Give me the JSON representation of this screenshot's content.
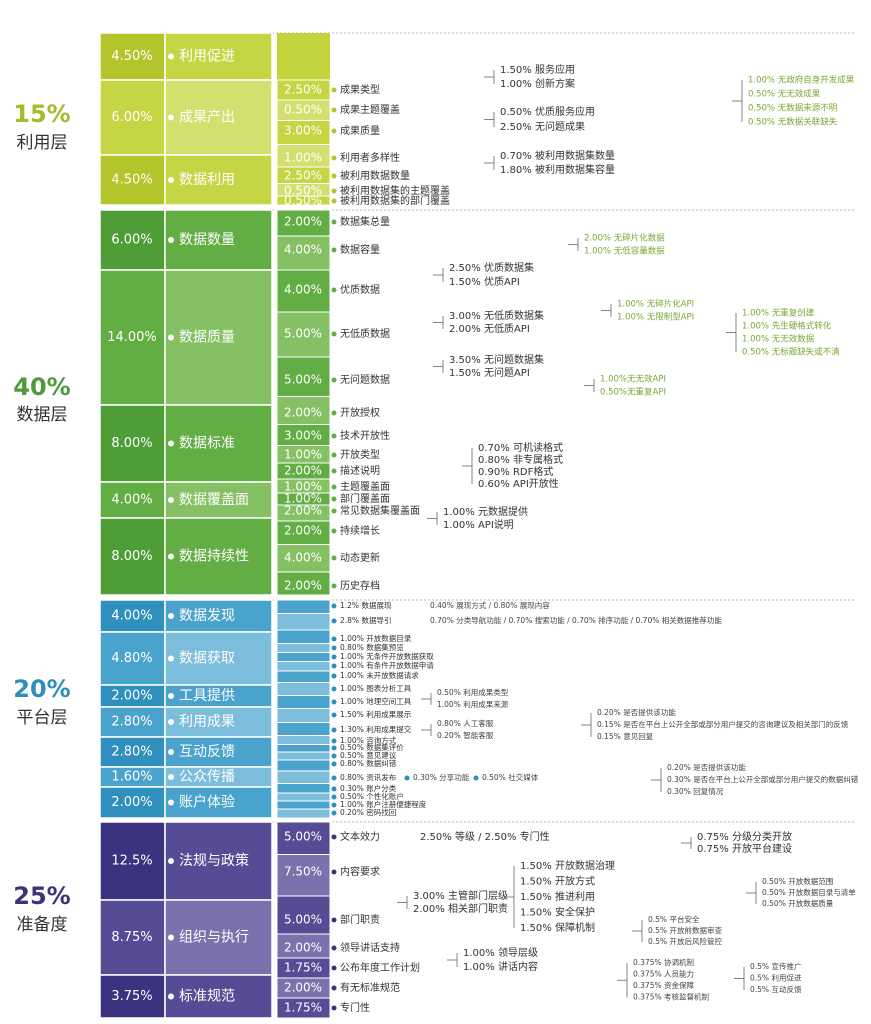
{
  "layers": [
    {
      "percent": "15%",
      "name": "利用层",
      "items": [
        {
          "percent": "4.50%",
          "name": "利用促进"
        },
        {
          "percent": "6.00%",
          "name": "成果产出"
        },
        {
          "percent": "4.50%",
          "name": "数据利用"
        }
      ],
      "rows": [
        {
          "percent": "2.50%",
          "name": "成果类型"
        },
        {
          "percent": "0.50%",
          "name": "成果主题覆盖"
        },
        {
          "percent": "3.00%",
          "name": "成果质量"
        },
        {
          "percent": "1.00%",
          "name": "利用者多样性"
        },
        {
          "percent": "2.50%",
          "name": "被利用数据数量"
        },
        {
          "percent": "0.50%",
          "name": "被利用数据集的主题覆盖"
        },
        {
          "percent": "0.50%",
          "name": "被利用数据集的部门覆盖"
        }
      ],
      "notes": [
        [
          "1.50% 服务应用",
          "1.00% 创新方案"
        ],
        [
          "0.50% 优质服务应用",
          "2.50% 无问题成果"
        ],
        [
          "1.00% 无政府自身开发成果",
          "0.50% 无无效成果",
          "0.50% 无数据来源不明",
          "0.50% 无数据关联缺失"
        ],
        [
          "0.70% 被利用数据集数量",
          "1.80% 被利用数据集容量"
        ]
      ]
    },
    {
      "percent": "40%",
      "name": "数据层",
      "items": [
        {
          "percent": "6.00%",
          "name": "数据数量"
        },
        {
          "percent": "14.00%",
          "name": "数据质量"
        },
        {
          "percent": "8.00%",
          "name": "数据标准"
        },
        {
          "percent": "4.00%",
          "name": "数据覆盖面"
        },
        {
          "percent": "8.00%",
          "name": "数据持续性"
        }
      ],
      "rows": [
        {
          "percent": "2.00%",
          "name": "数据集总量"
        },
        {
          "percent": "4.00%",
          "name": "数据容量"
        },
        {
          "percent": "4.00%",
          "name": "优质数据"
        },
        {
          "percent": "5.00%",
          "name": "无低质数据"
        },
        {
          "percent": "5.00%",
          "name": "无问题数据"
        },
        {
          "percent": "2.00%",
          "name": "开放授权"
        },
        {
          "percent": "3.00%",
          "name": "技术开放性"
        },
        {
          "percent": "1.00%",
          "name": "开放类型"
        },
        {
          "percent": "2.00%",
          "name": "描述说明"
        },
        {
          "percent": "1.00%",
          "name": "主题覆盖面"
        },
        {
          "percent": "1.00%",
          "name": "部门覆盖面"
        },
        {
          "percent": "2.00%",
          "name": "常见数据集覆盖面"
        },
        {
          "percent": "2.00%",
          "name": "持续增长"
        },
        {
          "percent": "4.00%",
          "name": "动态更新"
        },
        {
          "percent": "2.00%",
          "name": "历史存档"
        }
      ],
      "notes": [
        [
          "2.00% 无碎片化数据",
          "1.00% 无低容量数据"
        ],
        [
          "2.50% 优质数据集",
          "1.50% 优质API"
        ],
        [
          "1.00% 无碎片化API",
          "1.00% 无限制型API"
        ],
        [
          "1.00% 无重复创建",
          "1.00% 先生硬格式转化",
          "1.00% 无无效数据",
          "0.50% 无标题缺失或不清"
        ],
        [
          "3.00% 无低质数据集",
          "2.00% 无低质API"
        ],
        [
          "3.50% 无问题数据集",
          "1.50% 无问题API"
        ],
        [
          "1.00%无无效API",
          "0.50%无重复API"
        ],
        [
          "0.70% 可机读格式",
          "0.80% 非专属格式",
          "0.90% RDF格式",
          "0.60% API开放性"
        ],
        [
          "1.00% 元数据提供",
          "1.00% API说明"
        ]
      ]
    },
    {
      "percent": "20%",
      "name": "平台层",
      "items": [
        {
          "percent": "4.00%",
          "name": "数据发现"
        },
        {
          "percent": "4.80%",
          "name": "数据获取"
        },
        {
          "percent": "2.00%",
          "name": "工具提供"
        },
        {
          "percent": "2.80%",
          "name": "利用成果"
        },
        {
          "percent": "2.80%",
          "name": "互动反馈"
        },
        {
          "percent": "1.60%",
          "name": "公众传播"
        },
        {
          "percent": "2.00%",
          "name": "账户体验"
        }
      ],
      "rows": [
        {
          "name": "1.2% 数据展现"
        },
        {
          "name": "2.8% 数据导引"
        },
        {
          "name": "1.00% 开放数据目录"
        },
        {
          "name": "0.80% 数据集预览"
        },
        {
          "name": "1.00% 无条件开放数据获取"
        },
        {
          "name": "1.00% 有条件开放数据申请"
        },
        {
          "name": "1.00% 未开放数据请求"
        },
        {
          "name": "1.00% 图表分析工具"
        },
        {
          "name": "1.00% 地理空间工具"
        },
        {
          "name": "1.50% 利用成果展示"
        },
        {
          "name": "1.30% 利用成果提交"
        },
        {
          "name": "1.00% 咨询方式"
        },
        {
          "name": "0.50% 数据集评价"
        },
        {
          "name": "0.50% 意见建议"
        },
        {
          "name": "0.80% 数据纠错"
        },
        {
          "name": "0.80% 资讯发布"
        },
        {
          "name": "0.30% 账户分类"
        },
        {
          "name": "0.50% 个性化账户"
        },
        {
          "name": "1.00% 账户注册便捷程度"
        },
        {
          "name": "0.20% 密码找回"
        }
      ],
      "notes": [
        [
          "0.40% 展现方式 / 0.80% 展现内容"
        ],
        [
          "0.70% 分类导航功能 / 0.70% 搜索功能 / 0.70% 排序功能 / 0.70% 相关数据推荐功能"
        ],
        [
          "0.50% 利用成果类型",
          "1.00% 利用成果来源"
        ],
        [
          "0.80% 人工客服",
          "0.20% 智能客服"
        ],
        [
          "0.20% 是否提供该功能",
          "0.15% 是否在平台上公开全部或部分用户提交的咨询建议及相关部门的反馈",
          "0.15% 意见回复"
        ],
        [
          "0.20% 是否提供该功能",
          "0.30% 是否在平台上公开全部或部分用户提交的数据纠错",
          "0.30% 回复情况"
        ],
        [
          "0.30% 分享功能"
        ],
        [
          "0.50% 社交媒体"
        ]
      ]
    },
    {
      "percent": "25%",
      "name": "准备度",
      "items": [
        {
          "percent": "12.5%",
          "name": "法规与政策"
        },
        {
          "percent": "8.75%",
          "name": "组织与执行"
        },
        {
          "percent": "3.75%",
          "name": "标准规范"
        }
      ],
      "rows": [
        {
          "percent": "5.00%",
          "name": "文本效力"
        },
        {
          "percent": "7.50%",
          "name": "内容要求"
        },
        {
          "percent": "5.00%",
          "name": "部门职责"
        },
        {
          "percent": "2.00%",
          "name": "领导讲话支持"
        },
        {
          "percent": "1.75%",
          "name": "公布年度工作计划"
        },
        {
          "percent": "2.00%",
          "name": "有无标准规范"
        },
        {
          "percent": "1.75%",
          "name": "专门性"
        }
      ],
      "notes": [
        [
          "2.50% 等级 / 2.50% 专门性"
        ],
        [
          "1.50% 开放数据治理",
          "1.50% 开放方式",
          "1.50% 推进利用",
          "1.50% 安全保护",
          "1.50% 保障机制"
        ],
        [
          "0.75% 分级分类开放",
          "0.75% 开放平台建设"
        ],
        [
          "0.50% 开放数据范围",
          "0.50% 开放数据目录与清单",
          "0.50% 开放数据质量"
        ],
        [
          "0.5% 平台安全",
          "0.5% 开放前数据审查",
          "0.5% 开放后风险管控"
        ],
        [
          "3.00% 主管部门层级",
          "2.00% 相关部门职责"
        ],
        [
          "1.00% 领导层级",
          "1.00% 讲话内容"
        ],
        [
          "0.375% 协调机制",
          "0.375% 人员能力",
          "0.375% 资金保障",
          "0.375% 考核监督机制"
        ],
        [
          "0.5% 宣传推广",
          "0.5% 利用促进",
          "0.5% 互动反馈"
        ]
      ]
    }
  ]
}
